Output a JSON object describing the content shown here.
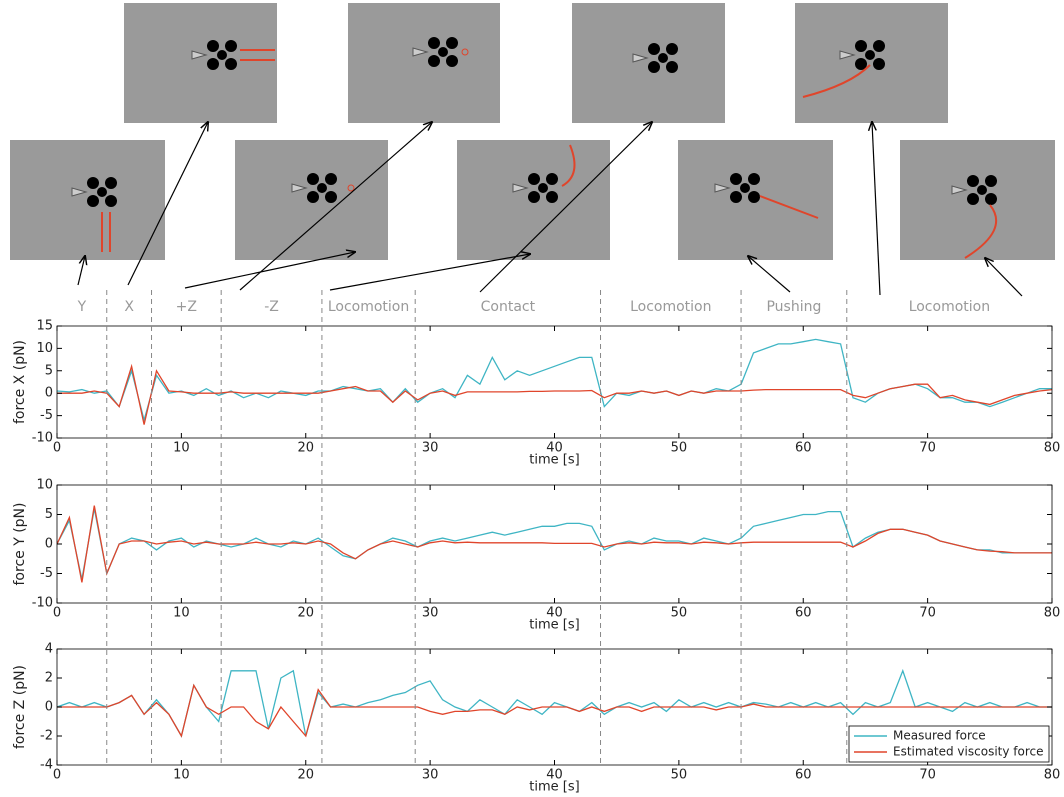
{
  "phases": {
    "labels": [
      "Y",
      "X",
      "+Z",
      "-Z",
      "Locomotion",
      "Contact",
      "Locomotion",
      "Pushing",
      "Locomotion"
    ],
    "boundaries": [
      4,
      7.6,
      13.2,
      21.3,
      28.8,
      43.7,
      55,
      63.5
    ]
  },
  "chart_data": [
    {
      "type": "line",
      "ylabel": "force X (pN)",
      "xlabel": "time [s]",
      "xlim": [
        0,
        80
      ],
      "ylim": [
        -10,
        15
      ],
      "xticks": [
        0,
        10,
        20,
        30,
        40,
        50,
        60,
        70,
        80
      ],
      "yticks": [
        -10,
        -5,
        0,
        5,
        10,
        15
      ],
      "x": [
        0,
        1,
        2,
        3,
        4,
        5,
        6,
        7,
        8,
        9,
        10,
        11,
        12,
        13,
        14,
        15,
        16,
        17,
        18,
        19,
        20,
        21,
        22,
        23,
        24,
        25,
        26,
        27,
        28,
        29,
        30,
        31,
        32,
        33,
        34,
        35,
        36,
        37,
        38,
        39,
        40,
        41,
        42,
        43,
        44,
        45,
        46,
        47,
        48,
        49,
        50,
        51,
        52,
        53,
        54,
        55,
        56,
        57,
        58,
        59,
        60,
        61,
        62,
        63,
        64,
        65,
        66,
        67,
        68,
        69,
        70,
        71,
        72,
        73,
        74,
        75,
        76,
        77,
        78,
        79,
        80
      ],
      "series": [
        {
          "color": "#3fb5c4",
          "values": [
            0.5,
            0.3,
            0.8,
            0,
            0.5,
            -3,
            5,
            -6,
            4,
            0,
            0.5,
            -0.5,
            1,
            -0.5,
            0.5,
            -1,
            0,
            -1,
            0.5,
            0,
            -0.5,
            0.5,
            0.5,
            1.5,
            1,
            0.5,
            1,
            -2,
            1,
            -2,
            0,
            1,
            -1,
            4,
            2,
            8,
            3,
            5,
            4,
            5,
            6,
            7,
            8,
            8,
            -3,
            0,
            -0.5,
            0.5,
            0,
            0.5,
            -0.5,
            0.5,
            0,
            1,
            0.5,
            2,
            9,
            10,
            11,
            11,
            11.5,
            12,
            11.5,
            11,
            -1,
            -2,
            0,
            1,
            1.5,
            2,
            1,
            -1,
            -1,
            -2,
            -2,
            -3,
            -2,
            -1,
            0,
            1,
            1
          ]
        },
        {
          "color": "#e0452b",
          "values": [
            0,
            0,
            0,
            0.5,
            0,
            -3,
            6,
            -7,
            5,
            0.5,
            0.3,
            0,
            0,
            0,
            0.3,
            0,
            0,
            0,
            0,
            0,
            0,
            0,
            0.5,
            1,
            1.5,
            0.5,
            0.5,
            -2,
            0.5,
            -1.5,
            0,
            0.5,
            -0.5,
            0.3,
            0.3,
            0.3,
            0.3,
            0.3,
            0.4,
            0.4,
            0.5,
            0.5,
            0.5,
            0.6,
            -1,
            0,
            0,
            0.5,
            0,
            0.5,
            -0.5,
            0.5,
            0,
            0.5,
            0.5,
            0.5,
            0.7,
            0.8,
            0.8,
            0.8,
            0.8,
            0.8,
            0.8,
            0.8,
            -0.5,
            -1,
            0,
            1,
            1.5,
            2,
            2,
            -1,
            -0.5,
            -1.5,
            -2,
            -2.5,
            -1.5,
            -0.5,
            0,
            0.5,
            0.8
          ]
        }
      ]
    },
    {
      "type": "line",
      "ylabel": "force Y (pN)",
      "xlabel": "time [s]",
      "xlim": [
        0,
        80
      ],
      "ylim": [
        -10,
        10
      ],
      "xticks": [
        0,
        10,
        20,
        30,
        40,
        50,
        60,
        70,
        80
      ],
      "yticks": [
        -10,
        -5,
        0,
        5,
        10
      ],
      "x": [
        0,
        1,
        2,
        3,
        4,
        5,
        6,
        7,
        8,
        9,
        10,
        11,
        12,
        13,
        14,
        15,
        16,
        17,
        18,
        19,
        20,
        21,
        22,
        23,
        24,
        25,
        26,
        27,
        28,
        29,
        30,
        31,
        32,
        33,
        34,
        35,
        36,
        37,
        38,
        39,
        40,
        41,
        42,
        43,
        44,
        45,
        46,
        47,
        48,
        49,
        50,
        51,
        52,
        53,
        54,
        55,
        56,
        57,
        58,
        59,
        60,
        61,
        62,
        63,
        64,
        65,
        66,
        67,
        68,
        69,
        70,
        71,
        72,
        73,
        74,
        75,
        76,
        77,
        78,
        79,
        80
      ],
      "series": [
        {
          "color": "#3fb5c4",
          "values": [
            0,
            4,
            -6,
            6,
            -5,
            0,
            1,
            0.5,
            -1,
            0.5,
            1,
            -0.5,
            0.5,
            0,
            -0.5,
            0,
            1,
            0,
            -0.5,
            0.5,
            0,
            1,
            -0.5,
            -2,
            -2.5,
            -1,
            0,
            1,
            0.5,
            -0.5,
            0.5,
            1,
            0.5,
            1,
            1.5,
            2,
            1.5,
            2,
            2.5,
            3,
            3,
            3.5,
            3.5,
            3,
            -1,
            0,
            0.5,
            0,
            1,
            0.5,
            0.5,
            0,
            1,
            0.5,
            0,
            1,
            3,
            3.5,
            4,
            4.5,
            5,
            5,
            5.5,
            5.5,
            -0.5,
            1,
            2,
            2.5,
            2.5,
            2,
            1.5,
            0.5,
            0,
            -0.5,
            -1,
            -1,
            -1.5,
            -1.5,
            -1.5,
            -1.5,
            -1.5
          ]
        },
        {
          "color": "#e0452b",
          "values": [
            0,
            4.5,
            -6.5,
            6.5,
            -5,
            0,
            0.5,
            0.5,
            0,
            0.3,
            0.5,
            0,
            0.3,
            0,
            0,
            0,
            0.3,
            0,
            0,
            0.2,
            0,
            0.5,
            0,
            -1.5,
            -2.5,
            -1,
            0,
            0.5,
            0,
            -0.5,
            0.2,
            0.5,
            0.2,
            0.3,
            0.2,
            0.2,
            0.2,
            0.2,
            0.2,
            0.2,
            0.1,
            0.1,
            0.1,
            0.1,
            -0.5,
            0,
            0.2,
            0,
            0.3,
            0.2,
            0.2,
            0,
            0.3,
            0.2,
            0,
            0.2,
            0.3,
            0.3,
            0.3,
            0.3,
            0.3,
            0.3,
            0.3,
            0.3,
            -0.5,
            0.5,
            1.8,
            2.5,
            2.5,
            2,
            1.5,
            0.5,
            0,
            -0.5,
            -1,
            -1.2,
            -1.3,
            -1.5,
            -1.5,
            -1.5,
            -1.5
          ]
        }
      ]
    },
    {
      "type": "line",
      "ylabel": "force Z (pN)",
      "xlabel": "time [s]",
      "xlim": [
        0,
        80
      ],
      "ylim": [
        -4,
        4
      ],
      "xticks": [
        0,
        10,
        20,
        30,
        40,
        50,
        60,
        70,
        80
      ],
      "yticks": [
        -4,
        -2,
        0,
        2,
        4
      ],
      "legend": "lower right",
      "x": [
        0,
        1,
        2,
        3,
        4,
        5,
        6,
        7,
        8,
        9,
        10,
        11,
        12,
        13,
        14,
        15,
        16,
        17,
        18,
        19,
        20,
        21,
        22,
        23,
        24,
        25,
        26,
        27,
        28,
        29,
        30,
        31,
        32,
        33,
        34,
        35,
        36,
        37,
        38,
        39,
        40,
        41,
        42,
        43,
        44,
        45,
        46,
        47,
        48,
        49,
        50,
        51,
        52,
        53,
        54,
        55,
        56,
        57,
        58,
        59,
        60,
        61,
        62,
        63,
        64,
        65,
        66,
        67,
        68,
        69,
        70,
        71,
        72,
        73,
        74,
        75,
        76,
        77,
        78,
        79,
        80
      ],
      "series": [
        {
          "name": "Measured force",
          "color": "#3fb5c4",
          "values": [
            0,
            0.3,
            0,
            0.3,
            0,
            0.3,
            0.8,
            -0.5,
            0.5,
            -0.5,
            -2,
            1.5,
            0,
            -1,
            2.5,
            2.5,
            2.5,
            -1.5,
            2,
            2.5,
            -2,
            1,
            0,
            0.2,
            0,
            0.3,
            0.5,
            0.8,
            1,
            1.5,
            1.8,
            0.5,
            0,
            -0.3,
            0.5,
            0,
            -0.5,
            0.5,
            0,
            -0.5,
            0.3,
            0,
            -0.3,
            0.3,
            -0.5,
            0,
            0.3,
            0,
            0.3,
            -0.3,
            0.5,
            0,
            0.3,
            0,
            0.3,
            0,
            0.3,
            0.2,
            0,
            0.3,
            0,
            0.3,
            0,
            0.3,
            -0.5,
            0.3,
            0,
            0.3,
            2.5,
            0,
            0.3,
            0,
            -0.3,
            0.3,
            0,
            0.3,
            0,
            0,
            0.3,
            0,
            0
          ]
        },
        {
          "name": "Estimated viscosity force",
          "color": "#e0452b",
          "values": [
            0,
            0,
            0,
            0,
            0,
            0.3,
            0.8,
            -0.5,
            0.3,
            -0.5,
            -2,
            1.5,
            0,
            -0.5,
            0,
            0,
            -1,
            -1.5,
            0,
            -1,
            -2,
            1.2,
            0,
            0,
            0,
            0,
            0,
            0,
            0,
            0,
            -0.3,
            -0.5,
            -0.3,
            -0.3,
            -0.2,
            -0.2,
            -0.5,
            0,
            -0.2,
            0,
            0,
            0,
            -0.3,
            0,
            -0.3,
            0,
            0,
            -0.3,
            0,
            0,
            0,
            0,
            0,
            -0.2,
            0,
            0,
            0.2,
            0,
            0,
            0,
            0,
            0,
            0,
            0,
            0,
            0,
            0,
            0,
            0,
            0,
            0,
            0,
            0,
            0,
            0,
            0,
            0,
            0,
            0,
            0,
            0
          ]
        }
      ]
    }
  ]
}
